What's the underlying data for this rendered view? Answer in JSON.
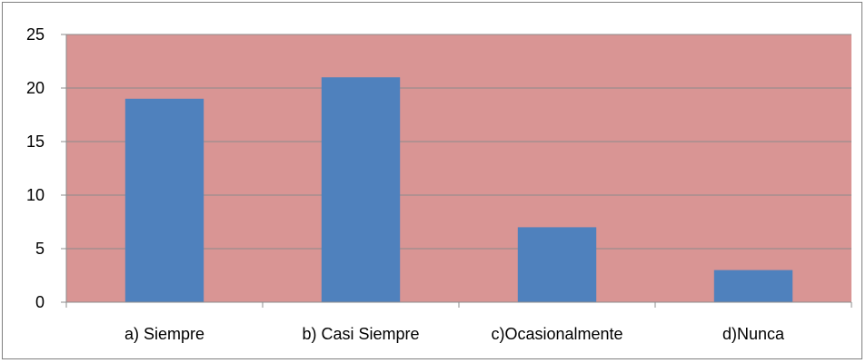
{
  "chart_data": {
    "type": "bar",
    "title": "",
    "xlabel": "",
    "ylabel": "",
    "categories": [
      "a) Siempre",
      "b) Casi Siempre",
      "c)Ocasionalmente",
      "d)Nunca"
    ],
    "values": [
      19,
      21,
      7,
      3
    ],
    "ylim": [
      0,
      25
    ],
    "yticks": [
      0,
      5,
      10,
      15,
      20,
      25
    ],
    "ytick_labels": [
      "0",
      "5",
      "10",
      "15",
      "20",
      "25"
    ],
    "grid": true,
    "legend": "none",
    "colors": {
      "bar": "#4f81bd",
      "plot_background": "#d99594",
      "gridline": "#8c8c8c",
      "axis": "#8c8c8c"
    }
  }
}
